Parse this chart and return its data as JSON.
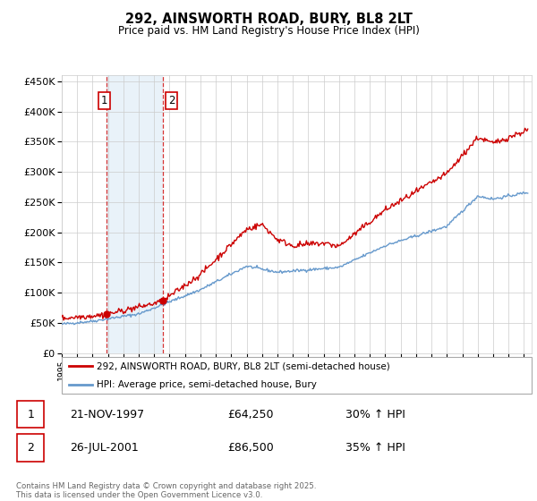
{
  "title": "292, AINSWORTH ROAD, BURY, BL8 2LT",
  "subtitle": "Price paid vs. HM Land Registry's House Price Index (HPI)",
  "ylim": [
    0,
    460000
  ],
  "yticks": [
    0,
    50000,
    100000,
    150000,
    200000,
    250000,
    300000,
    350000,
    400000,
    450000
  ],
  "xmin": 1995.0,
  "xmax": 2025.5,
  "sale1_x": 1997.896,
  "sale1_y": 64250,
  "sale2_x": 2001.568,
  "sale2_y": 86500,
  "legend_line1": "292, AINSWORTH ROAD, BURY, BL8 2LT (semi-detached house)",
  "legend_line2": "HPI: Average price, semi-detached house, Bury",
  "table_row1": [
    "1",
    "21-NOV-1997",
    "£64,250",
    "30% ↑ HPI"
  ],
  "table_row2": [
    "2",
    "26-JUL-2001",
    "£86,500",
    "35% ↑ HPI"
  ],
  "footer": "Contains HM Land Registry data © Crown copyright and database right 2025.\nThis data is licensed under the Open Government Licence v3.0.",
  "red_color": "#cc0000",
  "blue_color": "#6699cc",
  "shade_color": "#d8e8f5",
  "vline_color": "#cc0000",
  "background_color": "#ffffff",
  "grid_color": "#cccccc"
}
